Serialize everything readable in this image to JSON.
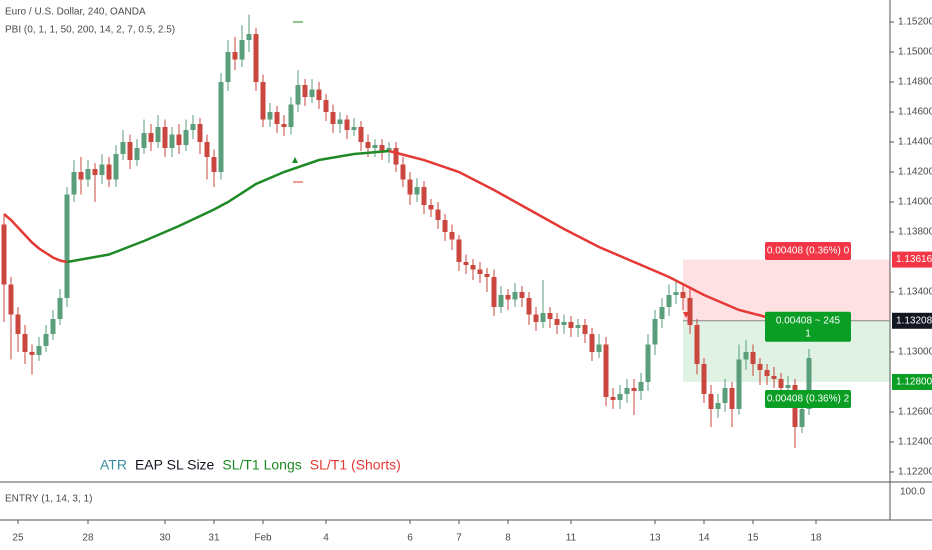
{
  "header": {
    "title": "Euro / U.S. Dollar, 240, OANDA",
    "indicator": "PBI (0, 1, 1, 50, 200, 14, 2, 7, 0.5, 2.5)"
  },
  "chart_data": {
    "type": "candlestick",
    "up_color": "#5b9e7c",
    "down_color": "#c9473f",
    "open": [
      1.1385,
      1.1345,
      1.1325,
      1.1312,
      1.13,
      1.1298,
      1.1304,
      1.1312,
      1.1322,
      1.1336,
      1.1405,
      1.142,
      1.1415,
      1.1422,
      1.1418,
      1.1425,
      1.1415,
      1.1432,
      1.144,
      1.1428,
      1.1436,
      1.1446,
      1.144,
      1.145,
      1.1436,
      1.1445,
      1.1438,
      1.1448,
      1.1452,
      1.144,
      1.143,
      1.142,
      1.148,
      1.15,
      1.1495,
      1.1508,
      1.1512,
      1.148,
      1.1455,
      1.146,
      1.1452,
      1.145,
      1.1465,
      1.1478,
      1.147,
      1.1475,
      1.1468,
      1.146,
      1.1452,
      1.1455,
      1.1448,
      1.145,
      1.144,
      1.1436,
      1.1438,
      1.1434,
      1.1436,
      1.1425,
      1.1415,
      1.1405,
      1.141,
      1.1398,
      1.1395,
      1.1388,
      1.138,
      1.1375,
      1.136,
      1.1358,
      1.1355,
      1.1352,
      1.135,
      1.133,
      1.1338,
      1.1335,
      1.134,
      1.1336,
      1.1325,
      1.132,
      1.1326,
      1.1322,
      1.1318,
      1.132,
      1.1316,
      1.1318,
      1.1312,
      1.13,
      1.1305,
      1.127,
      1.1268,
      1.1272,
      1.1276,
      1.1274,
      1.128,
      1.1305,
      1.1322,
      1.133,
      1.1338,
      1.134,
      1.1336,
      1.1318,
      1.1292,
      1.1272,
      1.1262,
      1.1266,
      1.1276,
      1.1262,
      1.1295,
      1.13,
      1.1292,
      1.1288,
      1.1284,
      1.1282,
      1.1276,
      1.1278,
      1.125,
      1.1262
    ],
    "high": [
      1.1392,
      1.135,
      1.133,
      1.1318,
      1.1305,
      1.131,
      1.1318,
      1.1328,
      1.1342,
      1.141,
      1.1428,
      1.143,
      1.1428,
      1.1426,
      1.1432,
      1.143,
      1.1438,
      1.1448,
      1.1445,
      1.1442,
      1.1455,
      1.1452,
      1.1458,
      1.1455,
      1.145,
      1.1452,
      1.1455,
      1.1458,
      1.1456,
      1.1445,
      1.1435,
      1.1486,
      1.1508,
      1.151,
      1.1518,
      1.1525,
      1.1516,
      1.1485,
      1.1466,
      1.1464,
      1.1458,
      1.147,
      1.1488,
      1.1482,
      1.1482,
      1.148,
      1.1472,
      1.1465,
      1.146,
      1.1458,
      1.1456,
      1.1454,
      1.1445,
      1.1442,
      1.1442,
      1.144,
      1.144,
      1.143,
      1.142,
      1.1416,
      1.1414,
      1.1402,
      1.14,
      1.1392,
      1.1385,
      1.1378,
      1.1365,
      1.1362,
      1.136,
      1.1356,
      1.1355,
      1.1344,
      1.1342,
      1.1346,
      1.1344,
      1.134,
      1.133,
      1.1348,
      1.133,
      1.1326,
      1.1325,
      1.1324,
      1.1322,
      1.1322,
      1.1316,
      1.1312,
      1.131,
      1.1276,
      1.1278,
      1.1282,
      1.1282,
      1.1286,
      1.1312,
      1.1328,
      1.1336,
      1.1345,
      1.1348,
      1.1346,
      1.1342,
      1.1322,
      1.1296,
      1.1278,
      1.1272,
      1.1282,
      1.128,
      1.1305,
      1.1308,
      1.1305,
      1.1296,
      1.1292,
      1.129,
      1.1286,
      1.1284,
      1.1282,
      1.1272,
      1.1302
    ],
    "low": [
      1.132,
      1.1295,
      1.13,
      1.1292,
      1.1285,
      1.1294,
      1.13,
      1.1308,
      1.1318,
      1.133,
      1.14,
      1.1405,
      1.141,
      1.14,
      1.1412,
      1.141,
      1.141,
      1.1428,
      1.1422,
      1.1424,
      1.1432,
      1.1434,
      1.1436,
      1.143,
      1.143,
      1.1432,
      1.1434,
      1.1442,
      1.1432,
      1.1415,
      1.141,
      1.1415,
      1.1474,
      1.1488,
      1.149,
      1.15,
      1.1474,
      1.145,
      1.145,
      1.1446,
      1.1444,
      1.1445,
      1.146,
      1.1464,
      1.1466,
      1.1462,
      1.1454,
      1.1446,
      1.1446,
      1.1442,
      1.1444,
      1.1434,
      1.143,
      1.143,
      1.1428,
      1.1426,
      1.142,
      1.141,
      1.1398,
      1.14,
      1.1392,
      1.139,
      1.1382,
      1.1374,
      1.1368,
      1.1354,
      1.1352,
      1.1348,
      1.1346,
      1.134,
      1.1324,
      1.1326,
      1.1328,
      1.133,
      1.133,
      1.1318,
      1.1314,
      1.1316,
      1.1316,
      1.1312,
      1.1312,
      1.131,
      1.131,
      1.1306,
      1.1294,
      1.1296,
      1.1264,
      1.1262,
      1.1262,
      1.1266,
      1.1258,
      1.1268,
      1.1274,
      1.1298,
      1.1316,
      1.1324,
      1.1332,
      1.1328,
      1.1312,
      1.1285,
      1.1266,
      1.125,
      1.1256,
      1.126,
      1.125,
      1.1258,
      1.1288,
      1.1284,
      1.1278,
      1.1278,
      1.1276,
      1.127,
      1.127,
      1.1236,
      1.1246,
      1.1258
    ],
    "close": [
      1.1345,
      1.1325,
      1.1312,
      1.13,
      1.1298,
      1.1304,
      1.1312,
      1.1322,
      1.1336,
      1.1405,
      1.142,
      1.1415,
      1.1422,
      1.1418,
      1.1425,
      1.1415,
      1.1432,
      1.144,
      1.1428,
      1.1436,
      1.1446,
      1.144,
      1.145,
      1.1436,
      1.1445,
      1.1438,
      1.1448,
      1.1452,
      1.144,
      1.143,
      1.142,
      1.148,
      1.15,
      1.1495,
      1.1508,
      1.1512,
      1.148,
      1.1455,
      1.146,
      1.1452,
      1.145,
      1.1465,
      1.1478,
      1.147,
      1.1475,
      1.1468,
      1.146,
      1.1452,
      1.1455,
      1.1448,
      1.145,
      1.144,
      1.1436,
      1.1438,
      1.1434,
      1.1436,
      1.1425,
      1.1415,
      1.1405,
      1.141,
      1.1398,
      1.1395,
      1.1388,
      1.138,
      1.1375,
      1.136,
      1.1358,
      1.1355,
      1.1352,
      1.135,
      1.133,
      1.1338,
      1.1335,
      1.134,
      1.1336,
      1.1325,
      1.132,
      1.1326,
      1.1322,
      1.1318,
      1.132,
      1.1316,
      1.1318,
      1.1312,
      1.13,
      1.1305,
      1.127,
      1.1268,
      1.1272,
      1.1276,
      1.1274,
      1.128,
      1.1305,
      1.1322,
      1.133,
      1.1338,
      1.134,
      1.1336,
      1.1318,
      1.1292,
      1.1272,
      1.1262,
      1.1266,
      1.1276,
      1.1262,
      1.1295,
      1.13,
      1.1292,
      1.1288,
      1.1284,
      1.1282,
      1.1276,
      1.1278,
      1.125,
      1.1262,
      1.1296
    ],
    "xlim": [
      -0.57,
      126.57
    ],
    "ylim": [
      1.12133,
      1.15347
    ],
    "xticks": [
      {
        "value": 2,
        "label": "25"
      },
      {
        "value": 12,
        "label": "28"
      },
      {
        "value": 23,
        "label": "30"
      },
      {
        "value": 30,
        "label": "31"
      },
      {
        "value": 37,
        "label": "Feb"
      },
      {
        "value": 46,
        "label": "4"
      },
      {
        "value": 58,
        "label": "6"
      },
      {
        "value": 65,
        "label": "7"
      },
      {
        "value": 72,
        "label": "8"
      },
      {
        "value": 81,
        "label": "11"
      },
      {
        "value": 93,
        "label": "13"
      },
      {
        "value": 100,
        "label": "14"
      },
      {
        "value": 107,
        "label": "15"
      },
      {
        "value": 116,
        "label": "18"
      }
    ],
    "yticks": [
      {
        "value": 1.152,
        "label": "1.15200"
      },
      {
        "value": 1.15,
        "label": "1.15000"
      },
      {
        "value": 1.148,
        "label": "1.14800"
      },
      {
        "value": 1.146,
        "label": "1.14600"
      },
      {
        "value": 1.144,
        "label": "1.14400"
      },
      {
        "value": 1.142,
        "label": "1.14200"
      },
      {
        "value": 1.14,
        "label": "1.14000"
      },
      {
        "value": 1.138,
        "label": "1.13800"
      },
      {
        "value": 1.134,
        "label": "1.13400"
      },
      {
        "value": 1.13,
        "label": "1.13000"
      },
      {
        "value": 1.126,
        "label": "1.12600"
      },
      {
        "value": 1.124,
        "label": "1.12400"
      },
      {
        "value": 1.122,
        "label": "1.12200"
      }
    ],
    "lines": [
      {
        "color": "#e53935",
        "x": [
          0,
          1,
          2,
          3,
          4,
          5,
          6,
          7,
          8,
          9
        ],
        "values": [
          1.1392,
          1.1388,
          1.1383,
          1.1378,
          1.1373,
          1.1369,
          1.1366,
          1.1363,
          1.1361,
          1.136
        ]
      },
      {
        "color": "#1e8a25",
        "x": [
          9,
          15,
          20,
          25,
          30,
          32,
          36,
          40,
          45,
          50,
          55
        ],
        "values": [
          1.136,
          1.1365,
          1.1374,
          1.1384,
          1.1395,
          1.14,
          1.1412,
          1.142,
          1.1428,
          1.1432,
          1.1434
        ]
      },
      {
        "color": "#e53935",
        "x": [
          55,
          60,
          65,
          70,
          75,
          80,
          85,
          90,
          95,
          100,
          105,
          110,
          115
        ],
        "values": [
          1.1434,
          1.1428,
          1.142,
          1.1408,
          1.1395,
          1.1382,
          1.137,
          1.136,
          1.135,
          1.1338,
          1.1328,
          1.1322,
          1.1316
        ]
      }
    ],
    "position": {
      "start": 97,
      "stop": 1.13616,
      "entry": 1.13208,
      "target": 1.128,
      "stop_label": "0.00408 (0.36%) 0",
      "entry_label": "0.00408 ~ 245",
      "entry_sublabel": "1",
      "target_label": "0.00408 (0.36%) 2"
    },
    "price_labels": [
      {
        "value": 1.13616,
        "label": "1.13616",
        "color": "#f23645"
      },
      {
        "value": 1.13208,
        "label": "1.13208",
        "color": "#131722"
      },
      {
        "value": 1.128,
        "label": "1.12800",
        "color": "#0a9e24"
      }
    ],
    "legend": [
      {
        "text": "ATR",
        "color": "#3a8ea0"
      },
      {
        "text": "EAP SL Size",
        "color": "#131722"
      },
      {
        "text": "SL/T1 Longs",
        "color": "#1e8a25"
      },
      {
        "text": "SL/T1 (Shorts)",
        "color": "#e53935"
      }
    ]
  },
  "lower_pane": {
    "title": "ENTRY (1, 14, 3, 1)",
    "axis_label": "100.0"
  }
}
